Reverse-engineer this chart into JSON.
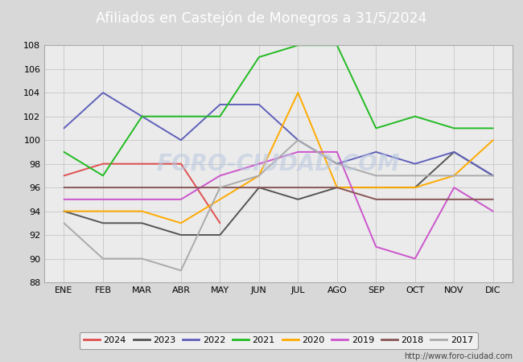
{
  "title": "Afiliados en Castejón de Monegros a 31/5/2024",
  "title_color": "#ffffff",
  "title_bg_color": "#4472c4",
  "months": [
    "ENE",
    "FEB",
    "MAR",
    "ABR",
    "MAY",
    "JUN",
    "JUL",
    "AGO",
    "SEP",
    "OCT",
    "NOV",
    "DIC"
  ],
  "ylim": [
    88,
    108
  ],
  "yticks": [
    88,
    90,
    92,
    94,
    96,
    98,
    100,
    102,
    104,
    106,
    108
  ],
  "series": {
    "2024": {
      "color": "#e05050",
      "data": [
        97,
        98,
        98,
        98,
        93,
        null,
        null,
        null,
        null,
        null,
        null,
        null
      ]
    },
    "2023": {
      "color": "#555555",
      "data": [
        94,
        93,
        93,
        92,
        92,
        96,
        95,
        96,
        96,
        96,
        99,
        97
      ]
    },
    "2022": {
      "color": "#6060bb",
      "data": [
        101,
        104,
        102,
        100,
        103,
        103,
        100,
        98,
        99,
        98,
        99,
        97
      ]
    },
    "2021": {
      "color": "#22bb22",
      "data": [
        99,
        97,
        102,
        102,
        102,
        107,
        108,
        108,
        101,
        102,
        101,
        101
      ]
    },
    "2020": {
      "color": "#ffaa00",
      "data": [
        94,
        94,
        94,
        93,
        95,
        97,
        104,
        96,
        96,
        96,
        97,
        100
      ]
    },
    "2019": {
      "color": "#cc55cc",
      "data": [
        95,
        95,
        95,
        95,
        97,
        98,
        99,
        99,
        91,
        90,
        96,
        94
      ]
    },
    "2018": {
      "color": "#885555",
      "data": [
        96,
        96,
        96,
        96,
        96,
        96,
        96,
        96,
        95,
        95,
        95,
        95
      ]
    },
    "2017": {
      "color": "#aaaaaa",
      "data": [
        93,
        90,
        90,
        89,
        96,
        97,
        100,
        98,
        97,
        97,
        97,
        97
      ]
    }
  },
  "legend_order": [
    "2024",
    "2023",
    "2022",
    "2021",
    "2020",
    "2019",
    "2018",
    "2017"
  ],
  "watermark": "FORO-CIUDAD.COM",
  "url": "http://www.foro-ciudad.com",
  "grid_color": "#cccccc",
  "bg_color": "#d8d8d8",
  "plot_bg_color": "#ebebeb"
}
